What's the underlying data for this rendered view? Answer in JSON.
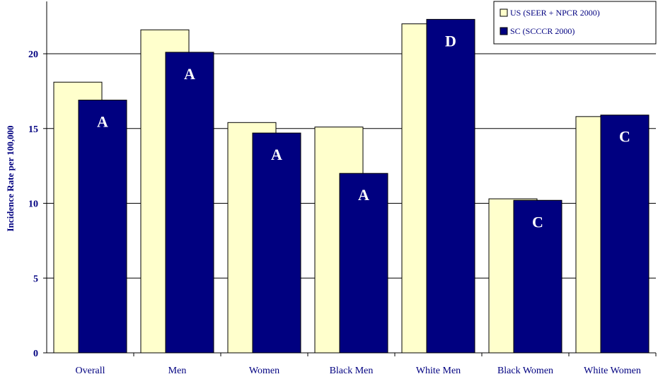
{
  "chart_data": {
    "type": "bar",
    "title": "",
    "xlabel": "",
    "ylabel": "Incidence Rate per 100,000",
    "ylim": [
      0,
      23.5
    ],
    "yticks": [
      0,
      5,
      10,
      15,
      20
    ],
    "grid": true,
    "legend_position": "top-right",
    "categories": [
      "Overall",
      "Men",
      "Women",
      "Black Men",
      "White Men",
      "Black Women",
      "White Women"
    ],
    "series": [
      {
        "name": "US (SEER + NPCR 2000)",
        "color": "#ffffcc",
        "values": [
          18.1,
          21.6,
          15.4,
          15.1,
          22.0,
          10.3,
          15.8
        ]
      },
      {
        "name": "SC (SCCCR 2000)",
        "color": "#000080",
        "values": [
          16.9,
          20.1,
          14.7,
          12.0,
          22.3,
          10.2,
          15.9
        ],
        "annotations": [
          "A",
          "A",
          "A",
          "A",
          "D",
          "C",
          "C"
        ]
      }
    ]
  }
}
